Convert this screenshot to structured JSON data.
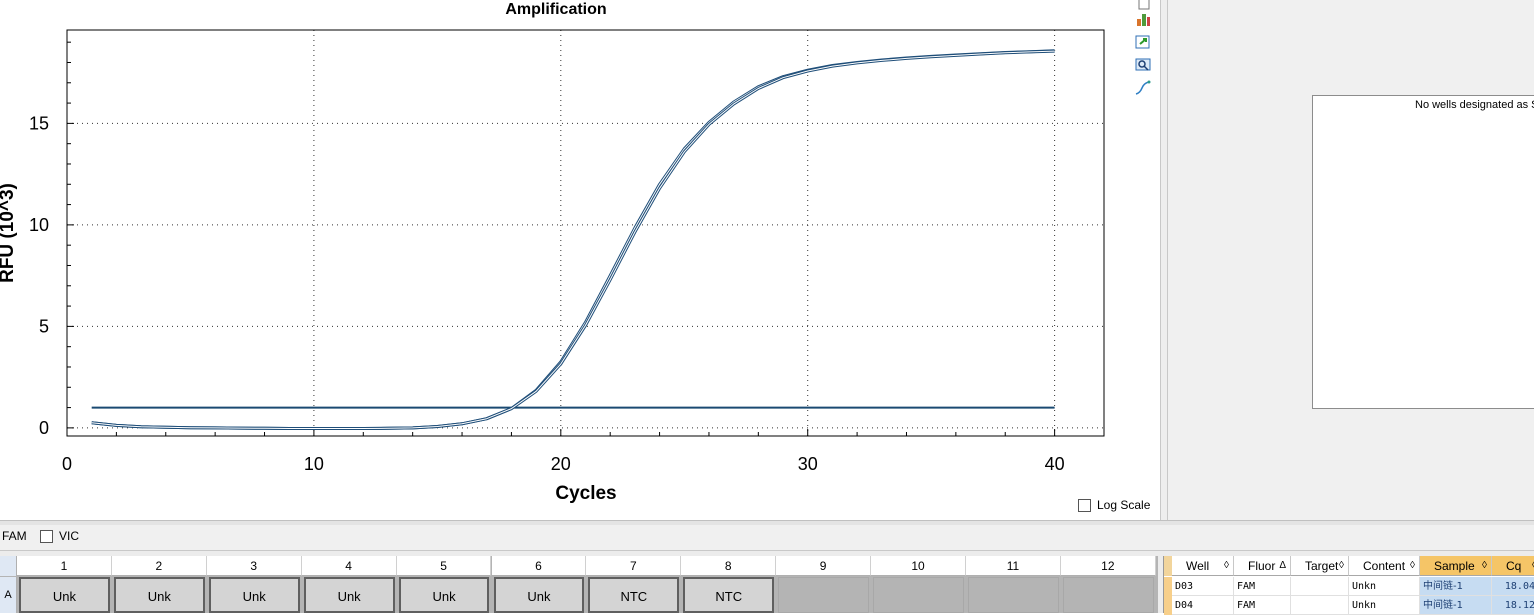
{
  "chart_data": {
    "type": "line",
    "title": "Amplification",
    "xlabel": "Cycles",
    "ylabel": "RFU (10^3)",
    "xlim": [
      0,
      42
    ],
    "ylim": [
      -0.4,
      19.6
    ],
    "x_ticks": [
      0,
      10,
      20,
      30,
      40
    ],
    "y_ticks": [
      0,
      5,
      10,
      15
    ],
    "grid": true,
    "series": [
      {
        "x": [
          1,
          2,
          3,
          4,
          5,
          6,
          7,
          8,
          9,
          10,
          11,
          12,
          13,
          14,
          15,
          16,
          17,
          18,
          19,
          20,
          21,
          22,
          23,
          24,
          25,
          26,
          27,
          28,
          29,
          30,
          31,
          32,
          33,
          34,
          35,
          36,
          37,
          38,
          39,
          40
        ],
        "values": [
          0.25,
          0.12,
          0.06,
          0.03,
          0.01,
          0.0,
          -0.01,
          -0.02,
          -0.03,
          -0.03,
          -0.03,
          -0.03,
          -0.02,
          0.0,
          0.07,
          0.2,
          0.45,
          0.95,
          1.85,
          3.25,
          5.2,
          7.5,
          9.85,
          12.0,
          13.75,
          15.05,
          16.05,
          16.8,
          17.3,
          17.62,
          17.85,
          18.0,
          18.12,
          18.22,
          18.3,
          18.37,
          18.43,
          18.49,
          18.53,
          18.58
        ],
        "color": "#1f4e79"
      },
      {
        "x": [
          1,
          2,
          3,
          4,
          5,
          6,
          7,
          8,
          9,
          10,
          11,
          12,
          13,
          14,
          15,
          16,
          17,
          18,
          19,
          20,
          21,
          22,
          23,
          24,
          25,
          26,
          27,
          28,
          29,
          30,
          31,
          32,
          33,
          34,
          35,
          36,
          37,
          38,
          39,
          40
        ],
        "values": [
          0.25,
          0.12,
          0.06,
          0.03,
          0.01,
          0.0,
          -0.01,
          -0.02,
          -0.03,
          -0.03,
          -0.03,
          -0.03,
          -0.02,
          0.0,
          0.07,
          0.2,
          0.45,
          0.95,
          1.8,
          3.15,
          5.05,
          7.3,
          9.65,
          11.8,
          13.6,
          14.95,
          15.95,
          16.72,
          17.25,
          17.58,
          17.82,
          17.98,
          18.1,
          18.2,
          18.28,
          18.35,
          18.42,
          18.48,
          18.52,
          18.56
        ],
        "color": "#1f4e79"
      }
    ],
    "threshold": 1.0,
    "threshold_color": "#1a4a72",
    "log_scale": false
  },
  "toolbar_icons": [
    "copy-icon",
    "bar-chart-icon",
    "export-icon",
    "zoom-icon",
    "curve-icon"
  ],
  "log_scale_label": "Log Scale",
  "std_curve_message": "No wells designated as S",
  "fluor_options": [
    {
      "label": "FAM",
      "checked": true
    },
    {
      "label": "VIC",
      "checked": false
    }
  ],
  "plate": {
    "columns": [
      "1",
      "2",
      "3",
      "4",
      "5",
      "6",
      "7",
      "8",
      "9",
      "10",
      "11",
      "12"
    ],
    "row_label": "A",
    "cells": [
      "Unk",
      "Unk",
      "Unk",
      "Unk",
      "Unk",
      "Unk",
      "NTC",
      "NTC",
      "",
      "",
      "",
      ""
    ]
  },
  "well_table": {
    "columns": [
      "Well",
      "Fluor",
      "Target",
      "Content",
      "Sample",
      "Cq"
    ],
    "rows": [
      {
        "Well": "D03",
        "Fluor": "FAM",
        "Target": "",
        "Content": "Unkn",
        "Sample": "中间链-1",
        "Cq": "18.04"
      },
      {
        "Well": "D04",
        "Fluor": "FAM",
        "Target": "",
        "Content": "Unkn",
        "Sample": "中间链-1",
        "Cq": "18.12"
      }
    ]
  }
}
